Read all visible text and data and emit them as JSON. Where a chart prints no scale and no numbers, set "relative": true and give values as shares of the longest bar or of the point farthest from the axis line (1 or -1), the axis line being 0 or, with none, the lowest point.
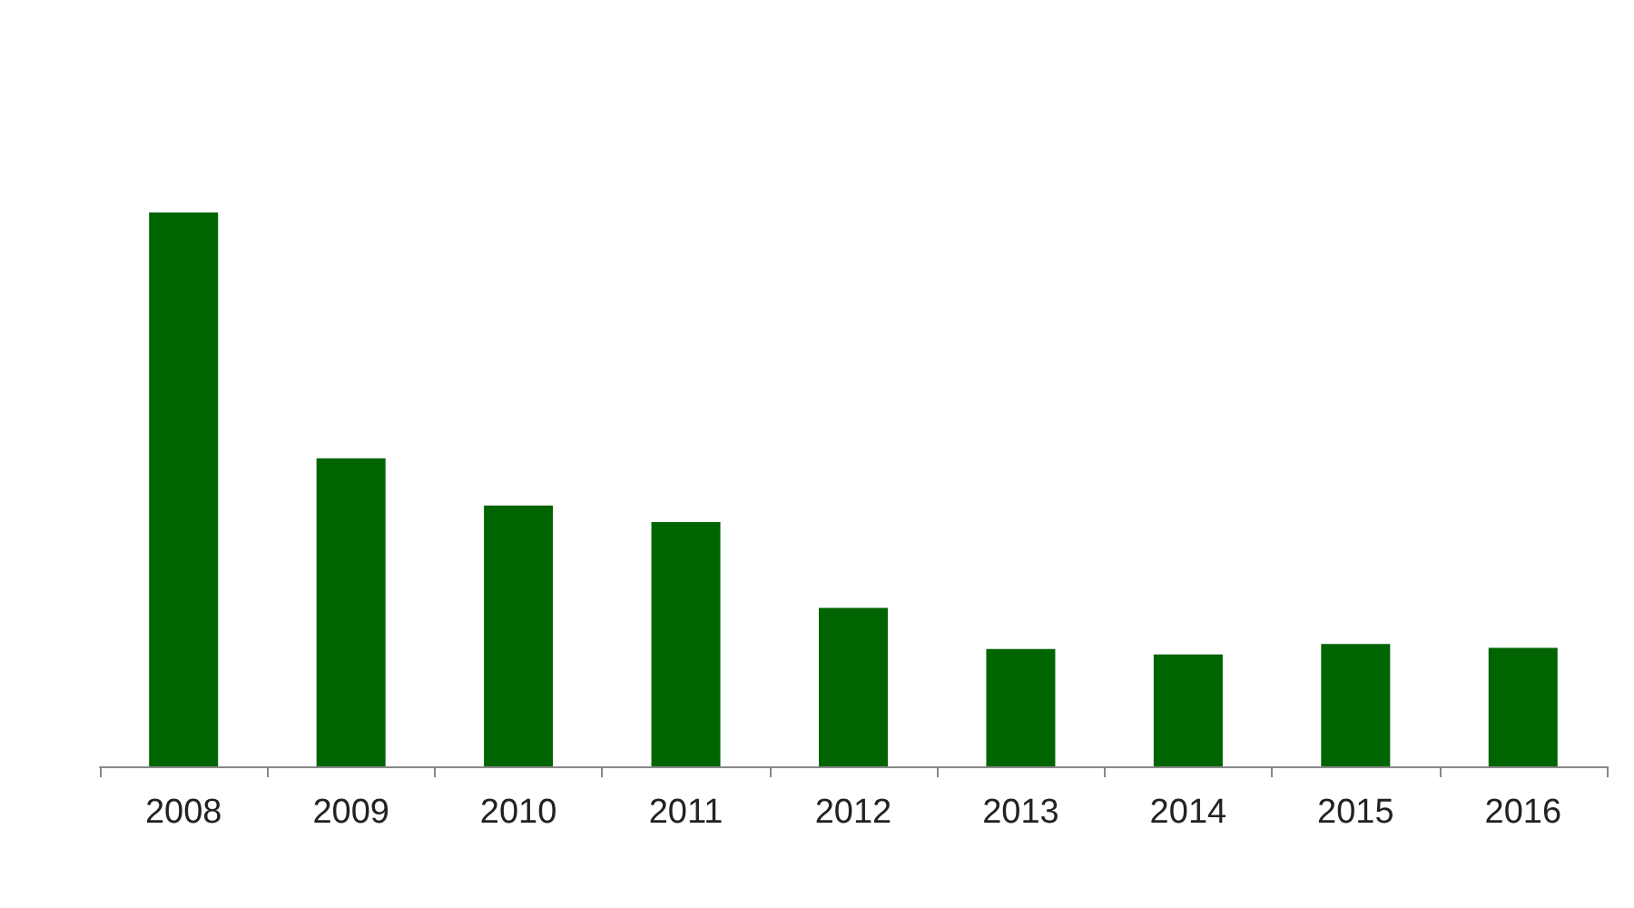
{
  "chart_data": {
    "type": "bar",
    "relative": true,
    "categories": [
      "2008",
      "2009",
      "2010",
      "2011",
      "2012",
      "2013",
      "2014",
      "2015",
      "2016"
    ],
    "values": [
      1,
      0.556,
      0.471,
      0.441,
      0.286,
      0.212,
      0.202,
      0.221,
      0.214
    ],
    "color": "#006400"
  }
}
